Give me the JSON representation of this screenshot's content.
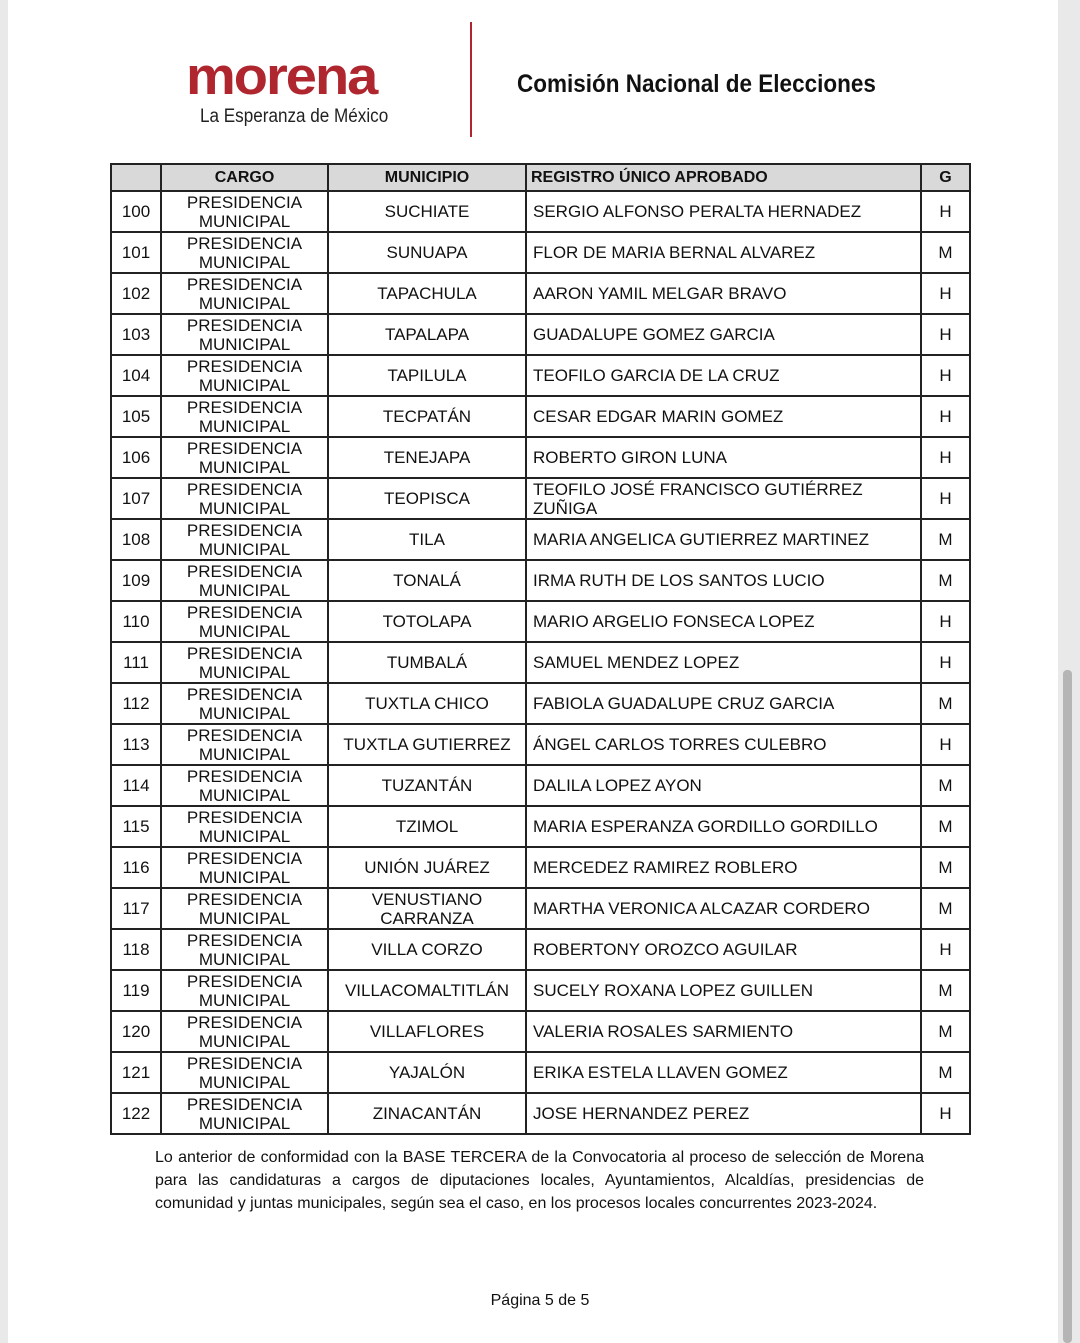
{
  "header": {
    "logo_text": "morena",
    "logo_tagline": "La Esperanza de México",
    "title": "Comisión Nacional de Elecciones"
  },
  "colors": {
    "brand": "#b0262f",
    "header_fill": "#d9d9d9"
  },
  "table": {
    "columns": [
      "",
      "CARGO",
      "MUNICIPIO",
      "REGISTRO ÚNICO APROBADO",
      "G"
    ],
    "rows": [
      [
        "100",
        "PRESIDENCIA MUNICIPAL",
        "SUCHIATE",
        "SERGIO ALFONSO PERALTA HERNADEZ",
        "H"
      ],
      [
        "101",
        "PRESIDENCIA MUNICIPAL",
        "SUNUAPA",
        "FLOR DE MARIA BERNAL ALVAREZ",
        "M"
      ],
      [
        "102",
        "PRESIDENCIA MUNICIPAL",
        "TAPACHULA",
        "AARON YAMIL MELGAR BRAVO",
        "H"
      ],
      [
        "103",
        "PRESIDENCIA MUNICIPAL",
        "TAPALAPA",
        "GUADALUPE GOMEZ GARCIA",
        "H"
      ],
      [
        "104",
        "PRESIDENCIA MUNICIPAL",
        "TAPILULA",
        "TEOFILO GARCIA DE LA CRUZ",
        "H"
      ],
      [
        "105",
        "PRESIDENCIA MUNICIPAL",
        "TECPATÁN",
        "CESAR EDGAR MARIN GOMEZ",
        "H"
      ],
      [
        "106",
        "PRESIDENCIA MUNICIPAL",
        "TENEJAPA",
        "ROBERTO GIRON LUNA",
        "H"
      ],
      [
        "107",
        "PRESIDENCIA MUNICIPAL",
        "TEOPISCA",
        "TEOFILO JOSÉ FRANCISCO GUTIÉRREZ ZUÑIGA",
        "H"
      ],
      [
        "108",
        "PRESIDENCIA MUNICIPAL",
        "TILA",
        "MARIA ANGELICA GUTIERREZ MARTINEZ",
        "M"
      ],
      [
        "109",
        "PRESIDENCIA MUNICIPAL",
        "TONALÁ",
        "IRMA RUTH DE LOS SANTOS LUCIO",
        "M"
      ],
      [
        "110",
        "PRESIDENCIA MUNICIPAL",
        "TOTOLAPA",
        "MARIO ARGELIO FONSECA LOPEZ",
        "H"
      ],
      [
        "111",
        "PRESIDENCIA MUNICIPAL",
        "TUMBALÁ",
        "SAMUEL MENDEZ LOPEZ",
        "H"
      ],
      [
        "112",
        "PRESIDENCIA MUNICIPAL",
        "TUXTLA CHICO",
        "FABIOLA GUADALUPE CRUZ GARCIA",
        "M"
      ],
      [
        "113",
        "PRESIDENCIA MUNICIPAL",
        "TUXTLA GUTIERREZ",
        "ÁNGEL CARLOS TORRES CULEBRO",
        "H"
      ],
      [
        "114",
        "PRESIDENCIA MUNICIPAL",
        "TUZANTÁN",
        "DALILA LOPEZ AYON",
        "M"
      ],
      [
        "115",
        "PRESIDENCIA MUNICIPAL",
        "TZIMOL",
        "MARIA ESPERANZA GORDILLO GORDILLO",
        "M"
      ],
      [
        "116",
        "PRESIDENCIA MUNICIPAL",
        "UNIÓN JUÁREZ",
        "MERCEDEZ RAMIREZ ROBLERO",
        "M"
      ],
      [
        "117",
        "PRESIDENCIA MUNICIPAL",
        "VENUSTIANO CARRANZA",
        "MARTHA VERONICA ALCAZAR CORDERO",
        "M"
      ],
      [
        "118",
        "PRESIDENCIA MUNICIPAL",
        "VILLA CORZO",
        "ROBERTONY OROZCO AGUILAR",
        "H"
      ],
      [
        "119",
        "PRESIDENCIA MUNICIPAL",
        "VILLACOMALTITLÁN",
        "SUCELY ROXANA LOPEZ GUILLEN",
        "M"
      ],
      [
        "120",
        "PRESIDENCIA MUNICIPAL",
        "VILLAFLORES",
        "VALERIA ROSALES SARMIENTO",
        "M"
      ],
      [
        "121",
        "PRESIDENCIA MUNICIPAL",
        "YAJALÓN",
        "ERIKA ESTELA LLAVEN GOMEZ",
        "M"
      ],
      [
        "122",
        "PRESIDENCIA MUNICIPAL",
        "ZINACANTÁN",
        "JOSE HERNANDEZ PEREZ",
        "H"
      ]
    ]
  },
  "note": "Lo anterior de conformidad con la BASE TERCERA de la Convocatoria al proceso de selección de Morena para las candidaturas a cargos de diputaciones locales, Ayuntamientos, Alcaldías, presidencias de comunidad y juntas municipales, según sea el caso, en los procesos locales concurrentes 2023-2024.",
  "footer": {
    "page_label": "Página 5 de 5"
  }
}
